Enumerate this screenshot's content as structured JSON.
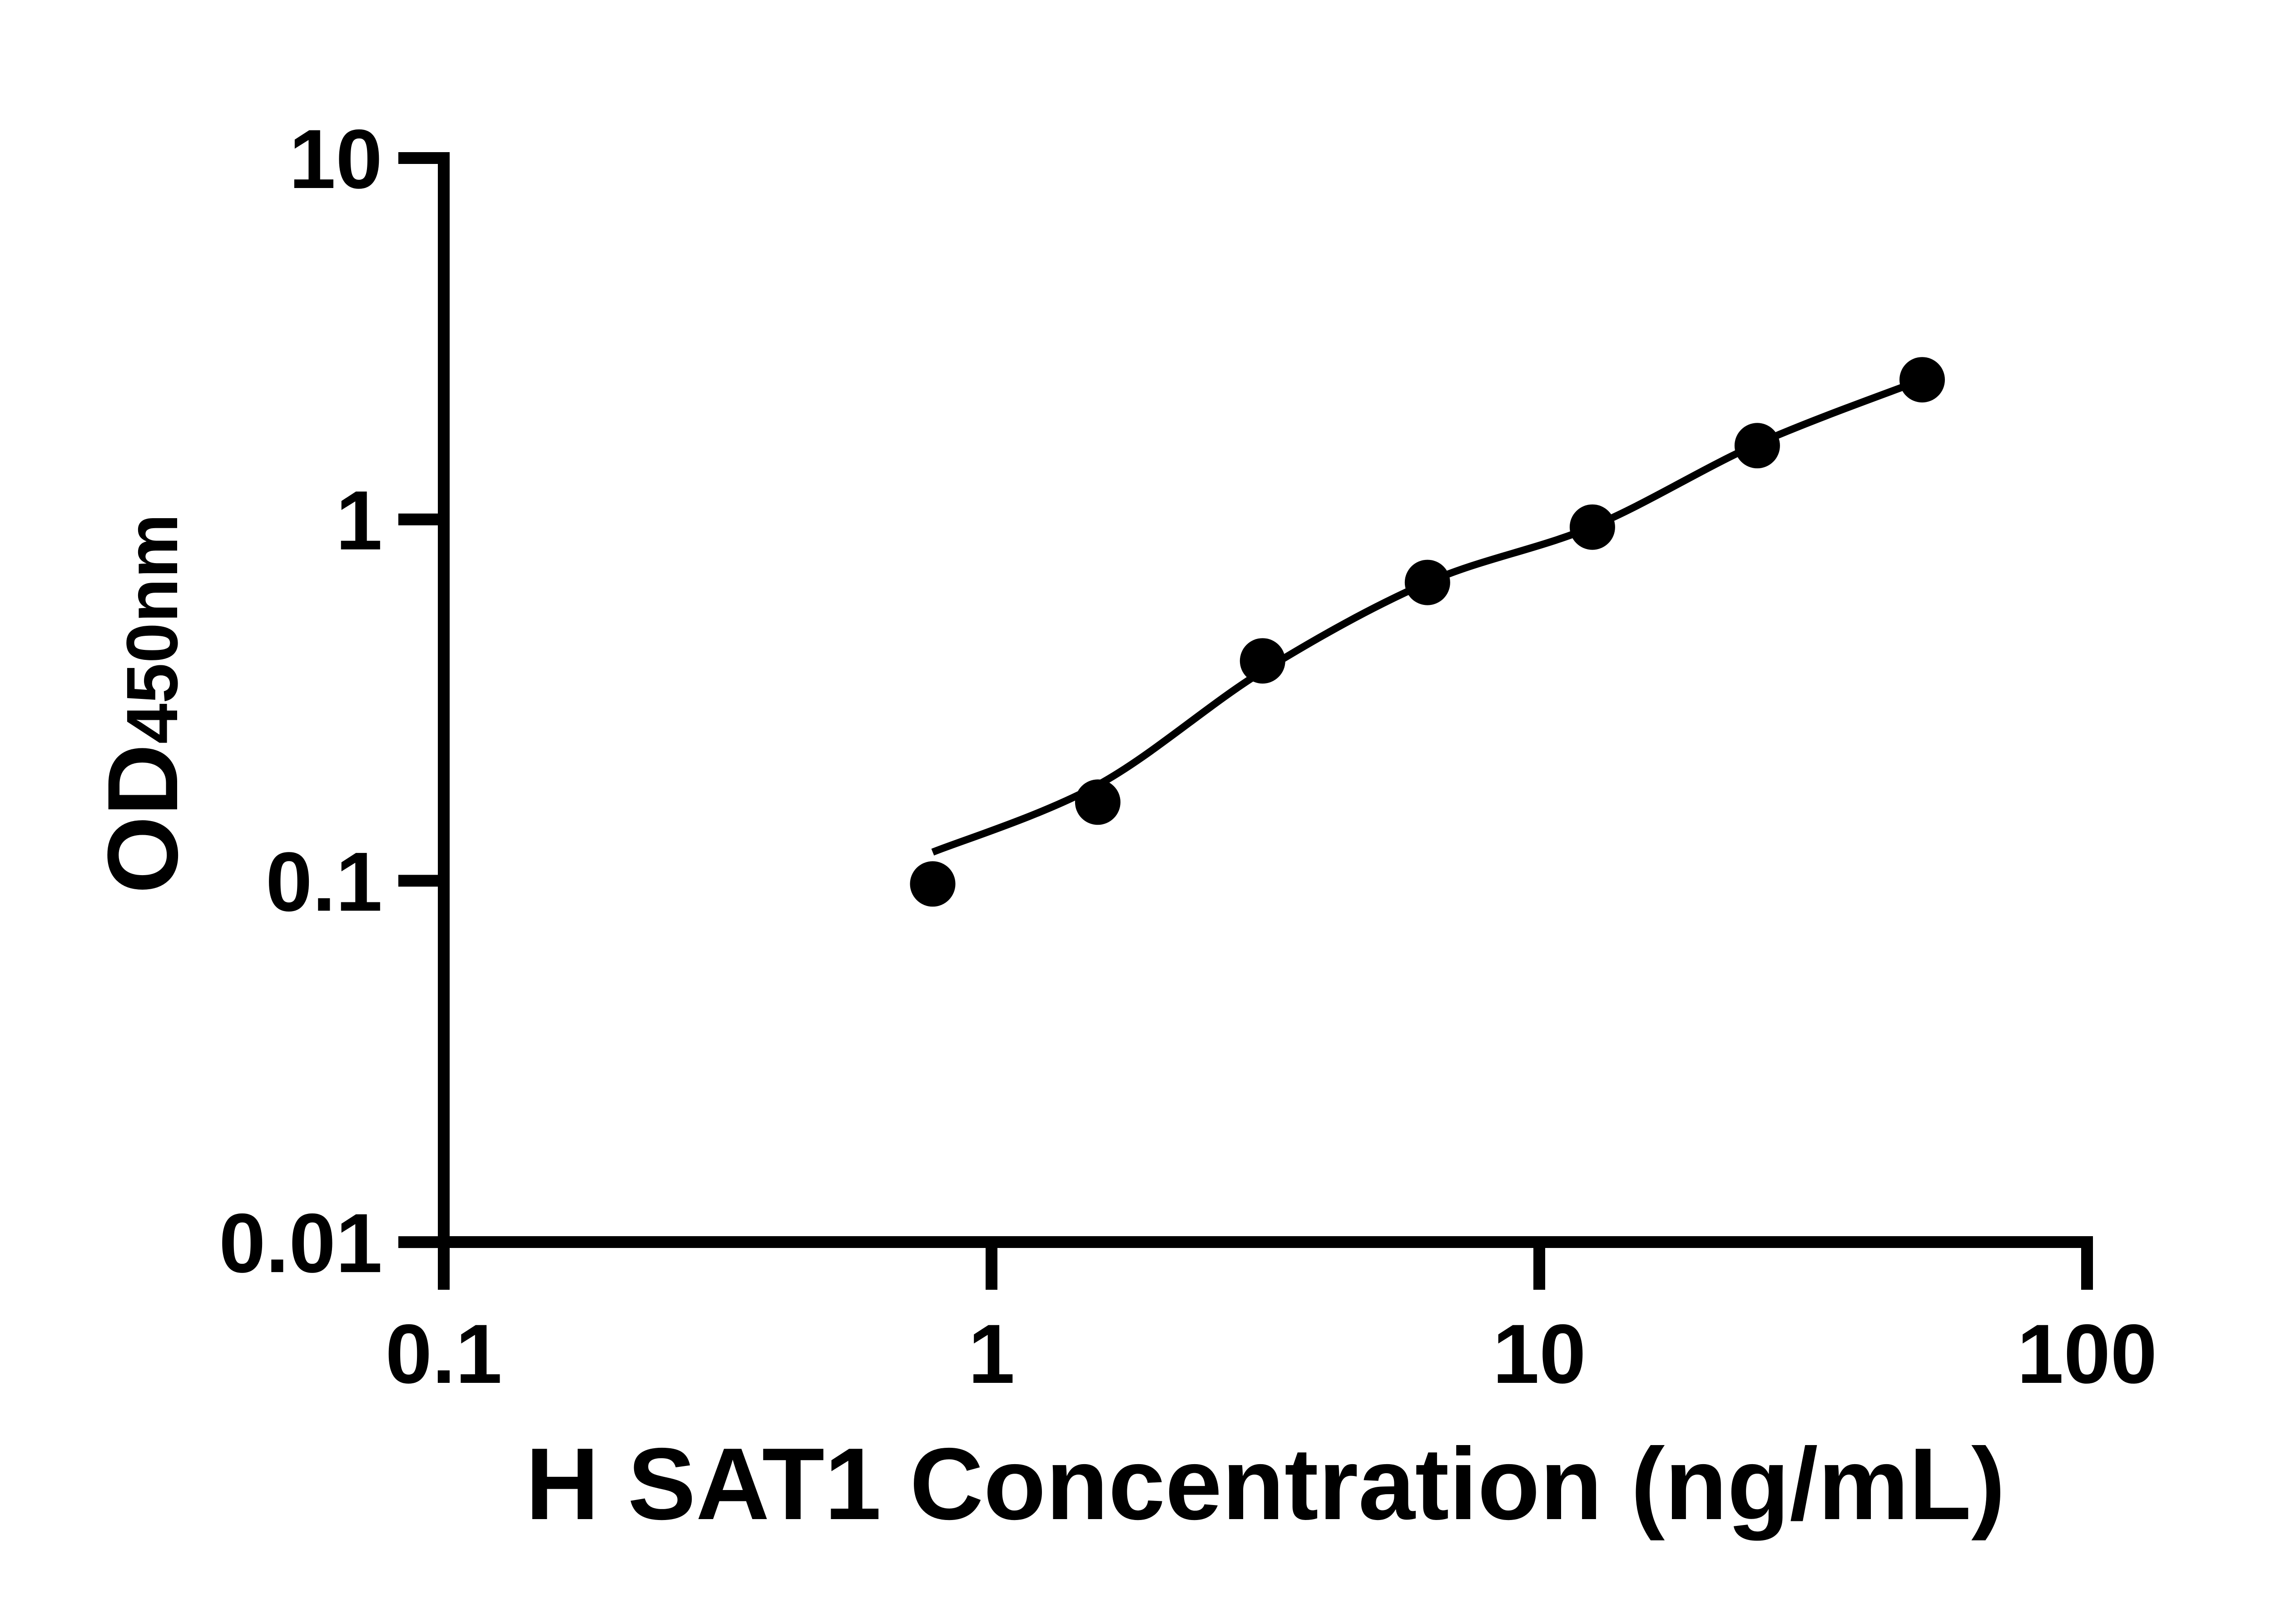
{
  "chart_data": {
    "type": "scatter",
    "title": "",
    "xlabel": "H SAT1 Concentration (ng/mL)",
    "ylabel_main": "OD",
    "ylabel_sub": "450nm",
    "x_scale": "log",
    "y_scale": "log",
    "xlim": [
      0.1,
      100
    ],
    "ylim": [
      0.01,
      10
    ],
    "grid": false,
    "legend": null,
    "x_ticks": [
      {
        "value": 0.1,
        "label": "0.1"
      },
      {
        "value": 1,
        "label": "1"
      },
      {
        "value": 10,
        "label": "10"
      },
      {
        "value": 100,
        "label": "100"
      }
    ],
    "y_ticks": [
      {
        "value": 10,
        "label": "10"
      },
      {
        "value": 1,
        "label": "1"
      },
      {
        "value": 0.1,
        "label": "0.1"
      },
      {
        "value": 0.01,
        "label": "0.01"
      }
    ],
    "series": [
      {
        "name": "standard-points",
        "kind": "scatter",
        "marker": "filled-circle",
        "points": [
          {
            "x": 0.781,
            "y": 0.098
          },
          {
            "x": 1.563,
            "y": 0.165
          },
          {
            "x": 3.125,
            "y": 0.406
          },
          {
            "x": 6.25,
            "y": 0.669
          },
          {
            "x": 12.5,
            "y": 0.952
          },
          {
            "x": 25,
            "y": 1.6
          },
          {
            "x": 50,
            "y": 2.435
          }
        ]
      },
      {
        "name": "fitted-curve",
        "kind": "line",
        "points": [
          {
            "x": 0.781,
            "y": 0.12
          },
          {
            "x": 1.563,
            "y": 0.184
          },
          {
            "x": 3.125,
            "y": 0.38
          },
          {
            "x": 6.25,
            "y": 0.669
          },
          {
            "x": 12.5,
            "y": 0.955
          },
          {
            "x": 25,
            "y": 1.617
          },
          {
            "x": 50,
            "y": 2.435
          }
        ]
      }
    ]
  },
  "colors": {
    "foreground": "#000000",
    "background": "#ffffff"
  }
}
